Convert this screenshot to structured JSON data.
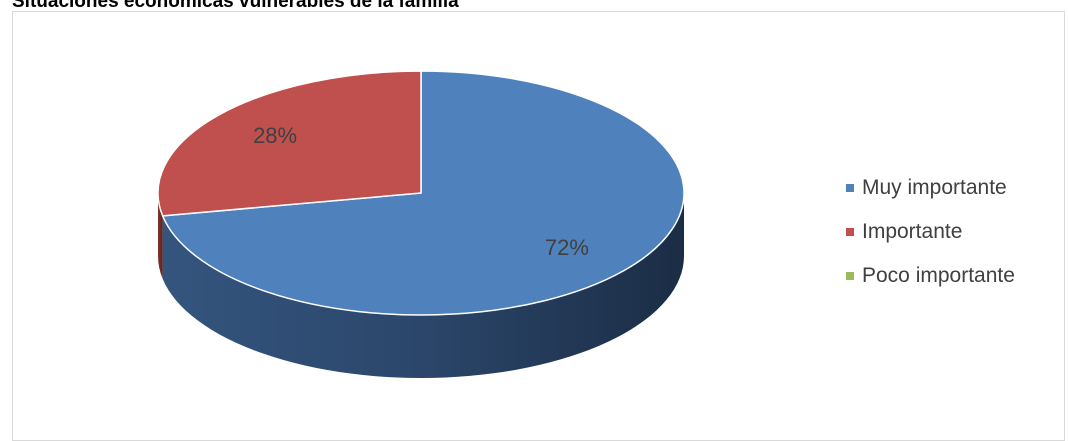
{
  "chart_data": {
    "type": "pie",
    "title": "Situaciones económicas vulnerables de la familia",
    "categories": [
      "Muy importante",
      "Importante",
      "Poco importante"
    ],
    "values": [
      72,
      28,
      0
    ],
    "value_labels": [
      "72%",
      "28%",
      ""
    ],
    "colors": [
      "#4f81bd",
      "#c0504d",
      "#9bbb59"
    ],
    "legend_position": "right",
    "three_d": true
  }
}
